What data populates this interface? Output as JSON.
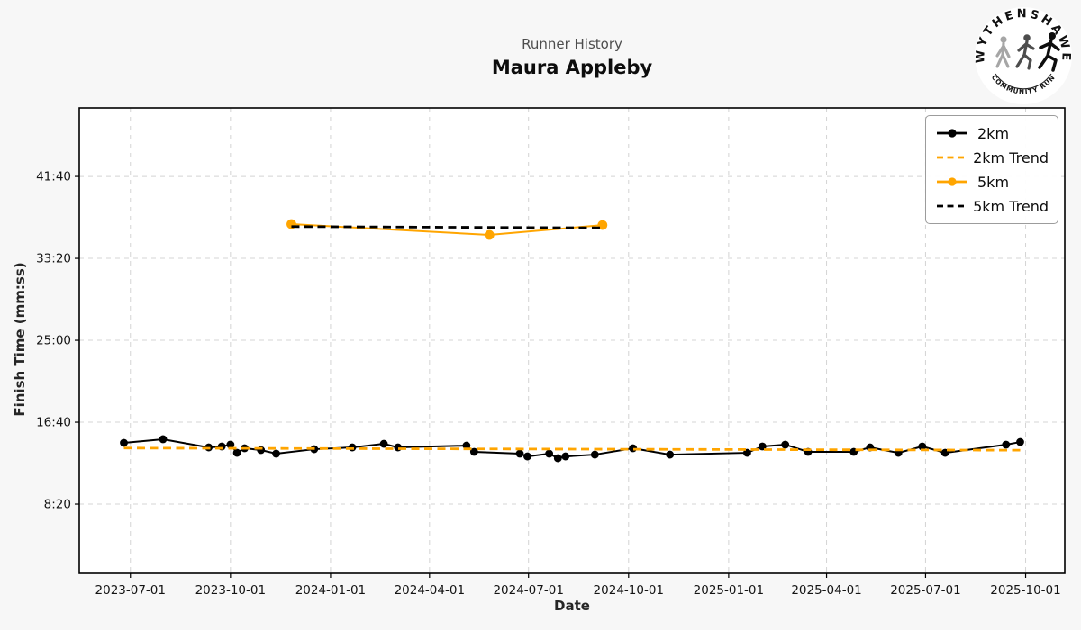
{
  "header": {
    "subtitle": "Runner History",
    "title": "Maura Appleby"
  },
  "logo": {
    "top_text": "WYTHENSHAWE",
    "bottom_text": "COMMUNITY RUN",
    "runner_colors": [
      "#a6a6a6",
      "#4d4d4d",
      "#0d0d0d"
    ]
  },
  "chart_data": {
    "type": "line",
    "title": "Runner History",
    "subtitle": "Maura Appleby",
    "xlabel": "Date",
    "ylabel": "Finish Time (mm:ss)",
    "grid": true,
    "legend_position": "upper right",
    "x_domain": [
      "2023-05-15",
      "2025-11-06"
    ],
    "y_domain_seconds": [
      77,
      2918
    ],
    "x_ticks": [
      "2023-07-01",
      "2023-10-01",
      "2024-01-01",
      "2024-04-01",
      "2024-07-01",
      "2024-10-01",
      "2025-01-01",
      "2025-04-01",
      "2025-07-01",
      "2025-10-01"
    ],
    "y_ticks": [
      {
        "label": "41:40",
        "seconds": 2500
      },
      {
        "label": "33:20",
        "seconds": 2000
      },
      {
        "label": "25:00",
        "seconds": 1500
      },
      {
        "label": "16:40",
        "seconds": 1000
      },
      {
        "label": "8:20",
        "seconds": 500
      }
    ],
    "colors": {
      "km2": "#000000",
      "km2_trend": "#FFA500",
      "km5": "#FFA500",
      "km5_trend": "#000000",
      "figure_background": "#f7f7f7",
      "plot_background": "#ffffff",
      "grid": "#d4d4d4"
    },
    "series": [
      {
        "name": "2km",
        "color": "#000000",
        "style": "solid",
        "marker": true,
        "points": [
          {
            "date": "2023-06-25",
            "time": "14:34",
            "seconds": 874
          },
          {
            "date": "2023-07-31",
            "time": "14:56",
            "seconds": 896
          },
          {
            "date": "2023-09-11",
            "time": "14:06",
            "seconds": 846
          },
          {
            "date": "2023-09-23",
            "time": "14:12",
            "seconds": 852
          },
          {
            "date": "2023-10-01",
            "time": "14:23",
            "seconds": 863
          },
          {
            "date": "2023-10-07",
            "time": "13:33",
            "seconds": 813
          },
          {
            "date": "2023-10-14",
            "time": "14:01",
            "seconds": 841
          },
          {
            "date": "2023-10-29",
            "time": "13:50",
            "seconds": 830
          },
          {
            "date": "2023-11-12",
            "time": "13:28",
            "seconds": 808
          },
          {
            "date": "2023-12-17",
            "time": "13:55",
            "seconds": 835
          },
          {
            "date": "2024-01-21",
            "time": "14:06",
            "seconds": 846
          },
          {
            "date": "2024-02-19",
            "time": "14:28",
            "seconds": 868
          },
          {
            "date": "2024-03-03",
            "time": "14:06",
            "seconds": 846
          },
          {
            "date": "2024-05-05",
            "time": "14:17",
            "seconds": 857
          },
          {
            "date": "2024-05-12",
            "time": "13:39",
            "seconds": 819
          },
          {
            "date": "2024-06-23",
            "time": "13:28",
            "seconds": 808
          },
          {
            "date": "2024-06-30",
            "time": "13:11",
            "seconds": 791
          },
          {
            "date": "2024-07-20",
            "time": "13:28",
            "seconds": 808
          },
          {
            "date": "2024-07-28",
            "time": "13:00",
            "seconds": 780
          },
          {
            "date": "2024-08-04",
            "time": "13:11",
            "seconds": 791
          },
          {
            "date": "2024-08-31",
            "time": "13:22",
            "seconds": 802
          },
          {
            "date": "2024-10-05",
            "time": "14:01",
            "seconds": 841
          },
          {
            "date": "2024-11-08",
            "time": "13:22",
            "seconds": 802
          },
          {
            "date": "2025-01-18",
            "time": "13:33",
            "seconds": 813
          },
          {
            "date": "2025-02-01",
            "time": "14:12",
            "seconds": 852
          },
          {
            "date": "2025-02-22",
            "time": "14:23",
            "seconds": 863
          },
          {
            "date": "2025-03-15",
            "time": "13:39",
            "seconds": 819
          },
          {
            "date": "2025-04-26",
            "time": "13:39",
            "seconds": 819
          },
          {
            "date": "2025-05-11",
            "time": "14:06",
            "seconds": 846
          },
          {
            "date": "2025-06-06",
            "time": "13:33",
            "seconds": 813
          },
          {
            "date": "2025-06-28",
            "time": "14:12",
            "seconds": 852
          },
          {
            "date": "2025-07-19",
            "time": "13:33",
            "seconds": 813
          },
          {
            "date": "2025-09-13",
            "time": "14:23",
            "seconds": 863
          },
          {
            "date": "2025-09-26",
            "time": "14:39",
            "seconds": 879
          }
        ]
      },
      {
        "name": "2km Trend",
        "color": "#FFA500",
        "style": "dashed",
        "marker": false,
        "points": [
          {
            "date": "2023-06-25",
            "time": "14:02",
            "seconds": 842
          },
          {
            "date": "2025-09-26",
            "time": "13:49",
            "seconds": 829
          }
        ]
      },
      {
        "name": "5km",
        "color": "#FFA500",
        "style": "solid",
        "marker": true,
        "points": [
          {
            "date": "2023-11-26",
            "time": "36:49",
            "seconds": 2209
          },
          {
            "date": "2024-05-26",
            "time": "35:43",
            "seconds": 2143
          },
          {
            "date": "2024-09-07",
            "time": "36:43",
            "seconds": 2203
          }
        ]
      },
      {
        "name": "5km Trend",
        "color": "#000000",
        "style": "dashed",
        "marker": false,
        "points": [
          {
            "date": "2023-11-26",
            "time": "36:34",
            "seconds": 2194
          },
          {
            "date": "2024-09-07",
            "time": "36:26",
            "seconds": 2186
          }
        ]
      }
    ]
  }
}
